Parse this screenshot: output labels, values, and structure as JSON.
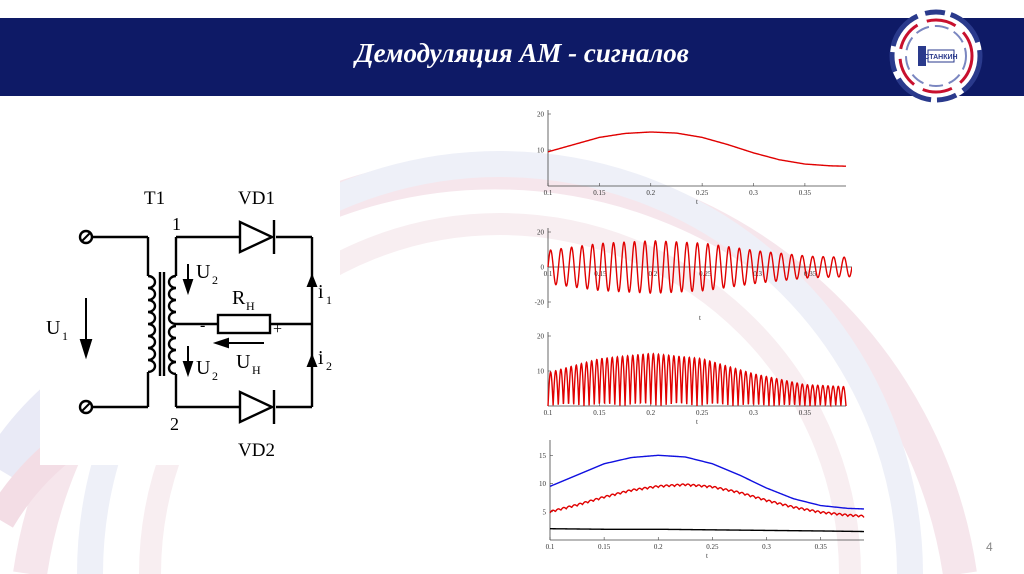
{
  "slide": {
    "title": "Демодуляция АМ - сигналов",
    "page_number": "4"
  },
  "logo": {
    "text": "СТАНКИН"
  },
  "circuit": {
    "transformer_label": "T1",
    "diode_top": "VD1",
    "diode_bottom": "VD2",
    "node_top": "1",
    "node_bottom": "2",
    "u1_main": "U",
    "u1_sub": "1",
    "u2_top_main": "U",
    "u2_top_sub": "2",
    "u2_bottom_main": "U",
    "u2_bottom_sub": "2",
    "rn_main": "R",
    "rn_sub": "Н",
    "un_main": "U",
    "un_sub": "Н",
    "i1_main": "i",
    "i1_sub": "1",
    "i2_main": "i",
    "i2_sub": "2",
    "minus": "-",
    "plus": "+"
  },
  "chart_data": [
    {
      "type": "line",
      "x_ticks": [
        "0.1",
        "0.15",
        "0.2",
        "0.25",
        "0.3",
        "0.35"
      ],
      "y_ticks": [
        "20",
        "10"
      ],
      "xlabel": "t",
      "xlim": [
        0.1,
        0.39
      ],
      "ylim": [
        0,
        20
      ],
      "colors": [
        "#e00000"
      ],
      "series": [
        {
          "x": [
            0.1,
            0.125,
            0.15,
            0.175,
            0.2,
            0.225,
            0.25,
            0.275,
            0.3,
            0.325,
            0.35,
            0.375,
            0.39
          ],
          "y": [
            9.5,
            11.5,
            13.5,
            14.6,
            15,
            14.7,
            13.5,
            11.5,
            9.2,
            7.3,
            6.1,
            5.6,
            5.5
          ]
        }
      ]
    },
    {
      "type": "line",
      "x_ticks": [
        "0.1",
        "0.15",
        "0.2",
        "0.25",
        "0.3",
        "0.35"
      ],
      "y_ticks": [
        "20",
        "0",
        "-20"
      ],
      "xlabel": "t",
      "xlim": [
        0.1,
        0.39
      ],
      "ylim": [
        -20,
        20
      ],
      "colors": [
        "#e00000"
      ],
      "series": [
        {
          "description": "AM signal",
          "carrier_cycles_per_unit": 100,
          "envelope": {
            "x": [
              0.1,
              0.15,
              0.2,
              0.25,
              0.3,
              0.35,
              0.39
            ],
            "y": [
              9.5,
              13.5,
              15,
              13.5,
              9.2,
              6.1,
              5.5
            ]
          }
        }
      ]
    },
    {
      "type": "line",
      "x_ticks": [
        "0.1",
        "0.15",
        "0.2",
        "0.25",
        "0.3",
        "0.35"
      ],
      "y_ticks": [
        "20",
        "10"
      ],
      "xlabel": "t",
      "xlim": [
        0.1,
        0.39
      ],
      "ylim": [
        0,
        20
      ],
      "colors": [
        "#e00000"
      ],
      "series": [
        {
          "description": "full-wave rectified AM signal",
          "carrier_cycles_per_unit": 100,
          "envelope": {
            "x": [
              0.1,
              0.15,
              0.2,
              0.25,
              0.3,
              0.35,
              0.39
            ],
            "y": [
              9.5,
              13.5,
              15,
              13.5,
              9.2,
              6.1,
              5.5
            ]
          }
        }
      ]
    },
    {
      "type": "line",
      "x_ticks": [
        "0.1",
        "0.15",
        "0.2",
        "0.25",
        "0.3",
        "0.35"
      ],
      "y_ticks": [
        "15",
        "10",
        "5"
      ],
      "xlabel": "t",
      "xlim": [
        0.1,
        0.39
      ],
      "ylim": [
        0,
        17
      ],
      "colors": [
        "#1010e0",
        "#e00000",
        "#000000"
      ],
      "series": [
        {
          "x": [
            0.1,
            0.125,
            0.15,
            0.175,
            0.2,
            0.225,
            0.25,
            0.275,
            0.3,
            0.325,
            0.35,
            0.375,
            0.39
          ],
          "y": [
            9.5,
            11.5,
            13.5,
            14.6,
            15,
            14.7,
            13.5,
            11.5,
            9.2,
            7.3,
            6.1,
            5.6,
            5.5
          ]
        },
        {
          "x": [
            0.1,
            0.125,
            0.15,
            0.175,
            0.2,
            0.225,
            0.25,
            0.275,
            0.3,
            0.325,
            0.35,
            0.375,
            0.39
          ],
          "y": [
            4.8,
            6.0,
            7.4,
            8.6,
            9.3,
            9.6,
            9.2,
            8.2,
            6.8,
            5.6,
            4.7,
            4.2,
            4.0
          ]
        },
        {
          "x": [
            0.1,
            0.15,
            0.2,
            0.25,
            0.3,
            0.35,
            0.39
          ],
          "y": [
            2.0,
            1.9,
            1.9,
            1.8,
            1.7,
            1.6,
            1.5
          ]
        }
      ]
    }
  ]
}
